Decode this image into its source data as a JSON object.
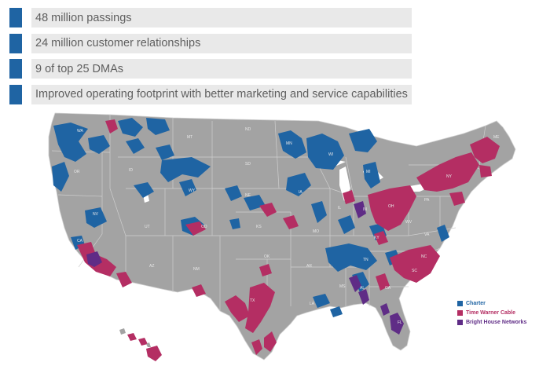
{
  "bullets": [
    {
      "text": "48 million passings"
    },
    {
      "text": "24 million customer relationships"
    },
    {
      "text": "9 of top 25 DMAs"
    },
    {
      "text": "Improved operating footprint with better marketing and service capabilities"
    }
  ],
  "colors": {
    "accent": "#1f64a3",
    "bar": "#e9e9e9",
    "land": "#a3a3a3",
    "border": "#cfcfcf",
    "charter": "#1f64a3",
    "twc": "#b42e63",
    "bhn": "#5f2c86"
  },
  "legend": [
    {
      "label": "Charter",
      "color": "#1f64a3",
      "icon": "legend-square"
    },
    {
      "label": "Time Warner Cable",
      "color": "#b42e63",
      "icon": "legend-square"
    },
    {
      "label": "Bright House Networks",
      "color": "#5f2c86",
      "icon": "legend-square"
    }
  ],
  "map": {
    "states": [
      {
        "abbr": "WA"
      },
      {
        "abbr": "OR"
      },
      {
        "abbr": "CA"
      },
      {
        "abbr": "NV"
      },
      {
        "abbr": "ID"
      },
      {
        "abbr": "MT"
      },
      {
        "abbr": "WY"
      },
      {
        "abbr": "UT"
      },
      {
        "abbr": "AZ"
      },
      {
        "abbr": "CO"
      },
      {
        "abbr": "NM"
      },
      {
        "abbr": "ND"
      },
      {
        "abbr": "SD"
      },
      {
        "abbr": "NE"
      },
      {
        "abbr": "KS"
      },
      {
        "abbr": "OK"
      },
      {
        "abbr": "TX"
      },
      {
        "abbr": "MN"
      },
      {
        "abbr": "IA"
      },
      {
        "abbr": "MO"
      },
      {
        "abbr": "AR"
      },
      {
        "abbr": "LA"
      },
      {
        "abbr": "WI"
      },
      {
        "abbr": "IL"
      },
      {
        "abbr": "MI"
      },
      {
        "abbr": "IN"
      },
      {
        "abbr": "OH"
      },
      {
        "abbr": "KY"
      },
      {
        "abbr": "TN"
      },
      {
        "abbr": "MS"
      },
      {
        "abbr": "AL"
      },
      {
        "abbr": "GA"
      },
      {
        "abbr": "FL"
      },
      {
        "abbr": "SC"
      },
      {
        "abbr": "NC"
      },
      {
        "abbr": "VA"
      },
      {
        "abbr": "WV"
      },
      {
        "abbr": "PA"
      },
      {
        "abbr": "NY"
      },
      {
        "abbr": "ME"
      }
    ]
  }
}
